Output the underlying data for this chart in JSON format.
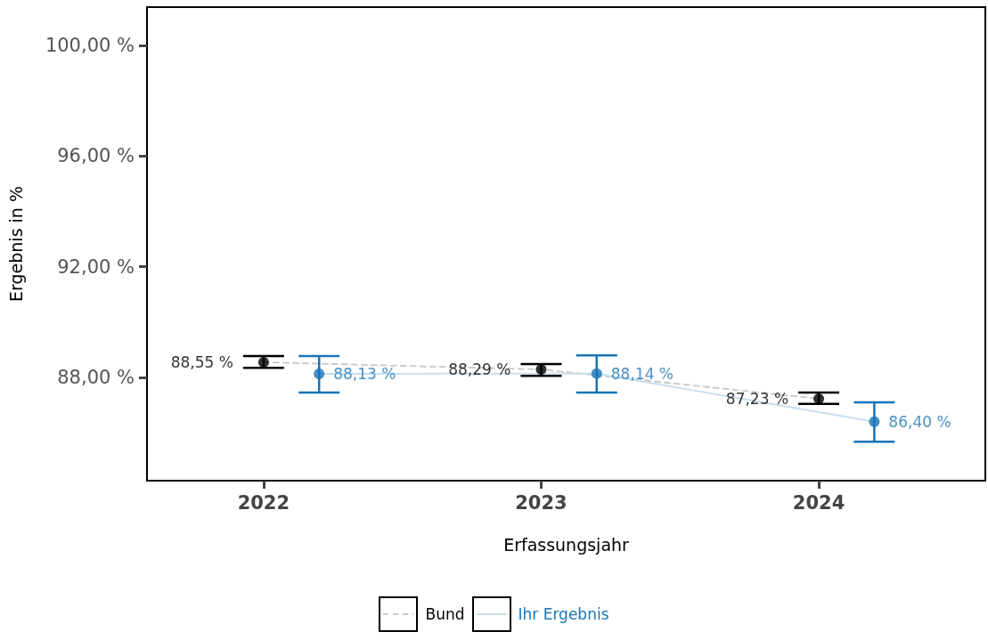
{
  "chart_data": {
    "type": "line",
    "xlabel": "Erfassungsjahr",
    "ylabel": "Ergebnis in %",
    "xlim": [
      2021.58,
      2024.6
    ],
    "xticks": [
      2022,
      2023,
      2024
    ],
    "ylim": [
      84.27,
      101.38
    ],
    "yticks": [
      {
        "value": 88,
        "label": "88,00 %"
      },
      {
        "value": 92,
        "label": "92,00 %"
      },
      {
        "value": 96,
        "label": "96,00 %"
      },
      {
        "value": 100,
        "label": "100,00 %"
      }
    ],
    "grid": false,
    "legend": "bottom",
    "series": [
      {
        "name": "Bund",
        "type": "line",
        "color": "#cccccc",
        "line_style": "dashed",
        "marker": "none",
        "x": [
          2022,
          2023,
          2024
        ],
        "values": [
          88.55,
          88.29,
          87.23
        ]
      },
      {
        "type": "scatter",
        "color": "#000000",
        "marker": "circle",
        "x": [
          2022,
          2023,
          2024
        ],
        "values": [
          88.55,
          88.29,
          87.23
        ],
        "errors": [
          [
            88.35,
            88.77
          ],
          [
            88.06,
            88.48
          ],
          [
            87.04,
            87.45
          ]
        ],
        "value_labels": [
          "88,55 %",
          "88,29 %",
          "87,23 %"
        ]
      },
      {
        "name": "Ihr Ergebnis",
        "type": "line",
        "color": "#c6dff0",
        "line_style": "solid",
        "marker": "none",
        "x": [
          2022.2,
          2023.2,
          2024.2
        ],
        "values": [
          88.13,
          88.14,
          86.4
        ]
      },
      {
        "type": "scatter",
        "color": "#1874b8",
        "marker": "circle",
        "x": [
          2022.2,
          2023.2,
          2024.2
        ],
        "values": [
          88.13,
          88.14,
          86.4
        ],
        "errors": [
          [
            87.45,
            88.77
          ],
          [
            87.45,
            88.8
          ],
          [
            85.68,
            87.1
          ]
        ],
        "value_labels": [
          "88,13 %",
          "88,14 %",
          "86,40 %"
        ]
      }
    ]
  }
}
